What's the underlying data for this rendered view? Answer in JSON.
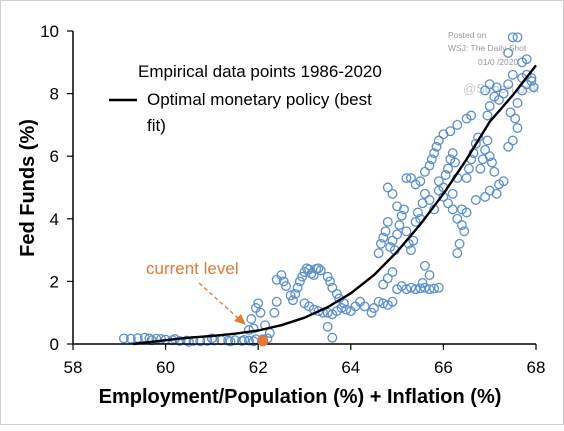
{
  "chart_data": {
    "type": "scatter",
    "xlabel": "Employment/Population (%) + Inflation (%)",
    "ylabel": "Fed Funds (%)",
    "xlim": [
      58,
      68
    ],
    "ylim": [
      0,
      10
    ],
    "x_ticks": [
      58,
      60,
      62,
      64,
      66,
      68
    ],
    "y_ticks": [
      0,
      2,
      4,
      6,
      8,
      10
    ],
    "grid": false,
    "legend": {
      "position": "top-left",
      "items": [
        {
          "label": "Empirical data points 1986-2020",
          "marker": "none"
        },
        {
          "label": "Optimal monetary policy (best fit)",
          "marker": "line",
          "label_lines": [
            "Optimal monetary policy (best",
            "fit)"
          ]
        }
      ]
    },
    "colors": {
      "points": "#5b8fcd",
      "fit_line": "#000000",
      "annotation": "#e07b39",
      "axis": "#000000"
    },
    "series": [
      {
        "name": "Empirical data points 1986-2020",
        "kind": "scatter",
        "points": [
          [
            59.1,
            0.18
          ],
          [
            59.25,
            0.17
          ],
          [
            59.4,
            0.19
          ],
          [
            59.55,
            0.2
          ],
          [
            59.65,
            0.18
          ],
          [
            59.8,
            0.17
          ],
          [
            59.9,
            0.16
          ],
          [
            60.0,
            0.14
          ],
          [
            60.15,
            0.12
          ],
          [
            60.3,
            0.1
          ],
          [
            60.45,
            0.11
          ],
          [
            60.6,
            0.1
          ],
          [
            60.75,
            0.09
          ],
          [
            60.9,
            0.1
          ],
          [
            61.05,
            0.11
          ],
          [
            61.2,
            0.12
          ],
          [
            61.35,
            0.11
          ],
          [
            61.5,
            0.12
          ],
          [
            61.65,
            0.1
          ],
          [
            61.8,
            0.11
          ],
          [
            61.9,
            0.09
          ],
          [
            61.95,
            0.15
          ],
          [
            61.7,
            0.13
          ],
          [
            60.5,
            0.07
          ],
          [
            59.7,
            0.12
          ],
          [
            60.2,
            0.16
          ],
          [
            61.0,
            0.18
          ],
          [
            61.4,
            0.08
          ],
          [
            61.8,
            0.45
          ],
          [
            61.85,
            0.8
          ],
          [
            61.95,
            1.15
          ],
          [
            62.0,
            1.3
          ],
          [
            62.05,
            1.0
          ],
          [
            62.15,
            0.6
          ],
          [
            62.25,
            0.35
          ],
          [
            61.9,
            0.5
          ],
          [
            62.1,
            0.15
          ],
          [
            62.2,
            0.18
          ],
          [
            62.35,
            1.0
          ],
          [
            62.4,
            1.35
          ],
          [
            62.4,
            2.05
          ],
          [
            62.5,
            2.2
          ],
          [
            62.55,
            2.0
          ],
          [
            62.6,
            1.85
          ],
          [
            62.7,
            1.55
          ],
          [
            62.75,
            1.4
          ],
          [
            62.8,
            1.6
          ],
          [
            62.85,
            1.8
          ],
          [
            62.9,
            2.0
          ],
          [
            62.95,
            2.15
          ],
          [
            63.0,
            2.3
          ],
          [
            63.05,
            2.42
          ],
          [
            63.1,
            2.38
          ],
          [
            63.15,
            2.25
          ],
          [
            63.2,
            2.2
          ],
          [
            63.25,
            2.4
          ],
          [
            63.3,
            2.42
          ],
          [
            63.35,
            2.35
          ],
          [
            63.0,
            1.3
          ],
          [
            63.1,
            1.2
          ],
          [
            63.2,
            1.1
          ],
          [
            63.3,
            1.05
          ],
          [
            63.4,
            1.0
          ],
          [
            63.5,
            1.0
          ],
          [
            63.6,
            0.95
          ],
          [
            63.7,
            1.05
          ],
          [
            63.8,
            1.15
          ],
          [
            63.85,
            1.3
          ],
          [
            63.9,
            1.1
          ],
          [
            64.0,
            1.05
          ],
          [
            64.1,
            1.2
          ],
          [
            64.2,
            1.35
          ],
          [
            64.3,
            1.2
          ],
          [
            64.45,
            1.0
          ],
          [
            64.5,
            1.15
          ],
          [
            64.6,
            1.35
          ],
          [
            64.7,
            1.3
          ],
          [
            64.8,
            1.25
          ],
          [
            64.9,
            1.35
          ],
          [
            63.5,
            2.15
          ],
          [
            63.55,
            2.0
          ],
          [
            63.6,
            1.8
          ],
          [
            63.7,
            1.6
          ],
          [
            63.75,
            1.45
          ],
          [
            63.5,
            0.55
          ],
          [
            63.6,
            0.2
          ],
          [
            64.7,
            1.9
          ],
          [
            64.8,
            2.1
          ],
          [
            64.9,
            2.3
          ],
          [
            65.0,
            1.75
          ],
          [
            65.1,
            1.85
          ],
          [
            65.2,
            1.75
          ],
          [
            65.3,
            1.8
          ],
          [
            65.4,
            1.75
          ],
          [
            65.5,
            1.78
          ],
          [
            65.6,
            1.8
          ],
          [
            65.7,
            1.75
          ],
          [
            65.8,
            1.77
          ],
          [
            65.9,
            1.8
          ],
          [
            65.6,
            2.5
          ],
          [
            65.7,
            2.2
          ],
          [
            65.55,
            1.95
          ],
          [
            64.6,
            2.9
          ],
          [
            64.65,
            3.2
          ],
          [
            64.7,
            3.4
          ],
          [
            64.75,
            3.6
          ],
          [
            64.8,
            3.9
          ],
          [
            64.85,
            3.1
          ],
          [
            64.9,
            3.3
          ],
          [
            64.95,
            3.0
          ],
          [
            65.0,
            3.5
          ],
          [
            65.05,
            3.8
          ],
          [
            65.1,
            4.1
          ],
          [
            65.15,
            4.3
          ],
          [
            65.2,
            3.6
          ],
          [
            65.25,
            3.2
          ],
          [
            65.3,
            3.0
          ],
          [
            65.35,
            3.3
          ],
          [
            65.4,
            3.9
          ],
          [
            65.45,
            4.2
          ],
          [
            65.5,
            4.0
          ],
          [
            65.55,
            4.5
          ],
          [
            65.6,
            4.8
          ],
          [
            64.8,
            5.0
          ],
          [
            64.9,
            4.8
          ],
          [
            65.0,
            4.4
          ],
          [
            65.2,
            5.3
          ],
          [
            65.3,
            5.3
          ],
          [
            65.4,
            5.1
          ],
          [
            65.5,
            5.2
          ],
          [
            65.6,
            5.5
          ],
          [
            65.7,
            5.7
          ],
          [
            65.75,
            5.9
          ],
          [
            65.8,
            6.1
          ],
          [
            65.85,
            6.3
          ],
          [
            65.9,
            5.2
          ],
          [
            66.0,
            5.0
          ],
          [
            66.05,
            5.4
          ],
          [
            66.1,
            5.6
          ],
          [
            66.15,
            5.9
          ],
          [
            66.2,
            6.1
          ],
          [
            66.25,
            5.8
          ],
          [
            66.3,
            5.3
          ],
          [
            65.7,
            4.6
          ],
          [
            65.8,
            4.3
          ],
          [
            65.9,
            4.9
          ],
          [
            66.0,
            4.7
          ],
          [
            66.1,
            4.5
          ],
          [
            66.2,
            4.3
          ],
          [
            66.3,
            4.0
          ],
          [
            66.4,
            3.8
          ],
          [
            66.45,
            3.6
          ],
          [
            66.3,
            2.9
          ],
          [
            66.35,
            3.2
          ],
          [
            66.2,
            4.8
          ],
          [
            66.4,
            4.3
          ],
          [
            66.5,
            4.2
          ],
          [
            65.9,
            6.5
          ],
          [
            66.0,
            6.7
          ],
          [
            66.15,
            6.8
          ],
          [
            66.3,
            7.0
          ],
          [
            66.5,
            7.2
          ],
          [
            66.6,
            7.3
          ],
          [
            66.5,
            5.3
          ],
          [
            66.55,
            5.6
          ],
          [
            66.6,
            5.9
          ],
          [
            66.65,
            6.1
          ],
          [
            66.7,
            6.4
          ],
          [
            66.75,
            6.6
          ],
          [
            66.8,
            5.6
          ],
          [
            66.85,
            5.9
          ],
          [
            66.9,
            6.2
          ],
          [
            66.95,
            6.5
          ],
          [
            67.0,
            6.0
          ],
          [
            67.05,
            5.8
          ],
          [
            67.1,
            5.5
          ],
          [
            67.15,
            4.8
          ],
          [
            67.2,
            5.1
          ],
          [
            66.7,
            4.6
          ],
          [
            66.9,
            4.7
          ],
          [
            67.0,
            4.9
          ],
          [
            67.3,
            5.2
          ],
          [
            67.4,
            6.3
          ],
          [
            67.5,
            6.5
          ],
          [
            66.95,
            7.3
          ],
          [
            67.0,
            7.6
          ],
          [
            67.1,
            7.9
          ],
          [
            67.15,
            8.2
          ],
          [
            67.2,
            7.8
          ],
          [
            67.3,
            8.0
          ],
          [
            67.4,
            8.3
          ],
          [
            67.5,
            8.6
          ],
          [
            67.6,
            7.7
          ],
          [
            67.7,
            8.1
          ],
          [
            67.8,
            8.3
          ],
          [
            67.9,
            8.4
          ],
          [
            67.95,
            8.2
          ],
          [
            67.6,
            6.9
          ],
          [
            67.7,
            8.5
          ],
          [
            67.8,
            8.6
          ],
          [
            67.9,
            8.5
          ],
          [
            67.45,
            7.4
          ],
          [
            67.55,
            7.2
          ],
          [
            67.4,
            9.3
          ],
          [
            67.5,
            9.8
          ],
          [
            67.6,
            9.8
          ],
          [
            67.7,
            9.0
          ],
          [
            67.8,
            9.1
          ],
          [
            66.9,
            8.1
          ],
          [
            67.0,
            8.3
          ]
        ]
      },
      {
        "name": "Optimal monetary policy (best fit)",
        "kind": "line",
        "points": [
          [
            59.3,
            0.0
          ],
          [
            60.0,
            0.12
          ],
          [
            60.5,
            0.2
          ],
          [
            61.0,
            0.26
          ],
          [
            61.5,
            0.33
          ],
          [
            62.0,
            0.43
          ],
          [
            62.5,
            0.6
          ],
          [
            63.0,
            0.84
          ],
          [
            63.5,
            1.18
          ],
          [
            64.0,
            1.62
          ],
          [
            64.5,
            2.2
          ],
          [
            65.0,
            2.95
          ],
          [
            65.5,
            3.82
          ],
          [
            66.0,
            4.8
          ],
          [
            66.5,
            5.9
          ],
          [
            67.0,
            7.1
          ],
          [
            67.5,
            7.95
          ],
          [
            68.0,
            8.9
          ]
        ]
      }
    ],
    "annotations": [
      {
        "text": "current level",
        "target_x": 62.1,
        "target_y": 0.1,
        "marker": "filled-circle"
      }
    ]
  },
  "watermark": {
    "lines": [
      "Posted on",
      "WSJ: The Daily Shot",
      "01/0 /2020"
    ],
    "handle": "@SoberLook"
  }
}
